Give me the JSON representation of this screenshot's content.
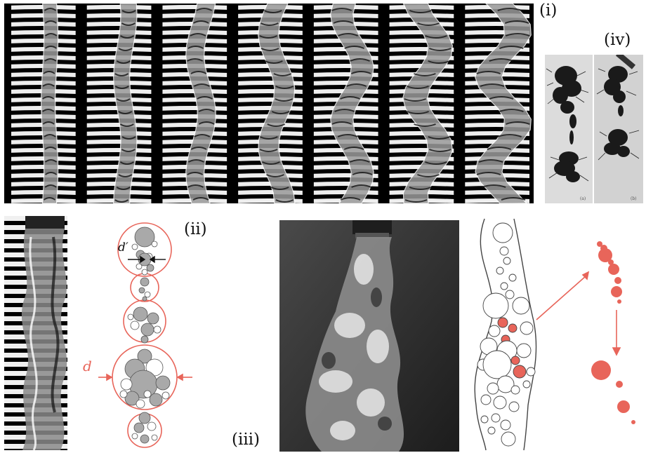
{
  "labels": {
    "panel_i": "(i)",
    "panel_ii": "(ii)",
    "panel_iii": "(iii)",
    "panel_iv": "(iv)",
    "diameter": "d",
    "diameter_prime": "d′",
    "inset_a": "(a)",
    "inset_b": "(b)"
  },
  "colors": {
    "accent": "#e8655a",
    "bubble_gray": "#a9a9a9",
    "outline": "#444444"
  }
}
